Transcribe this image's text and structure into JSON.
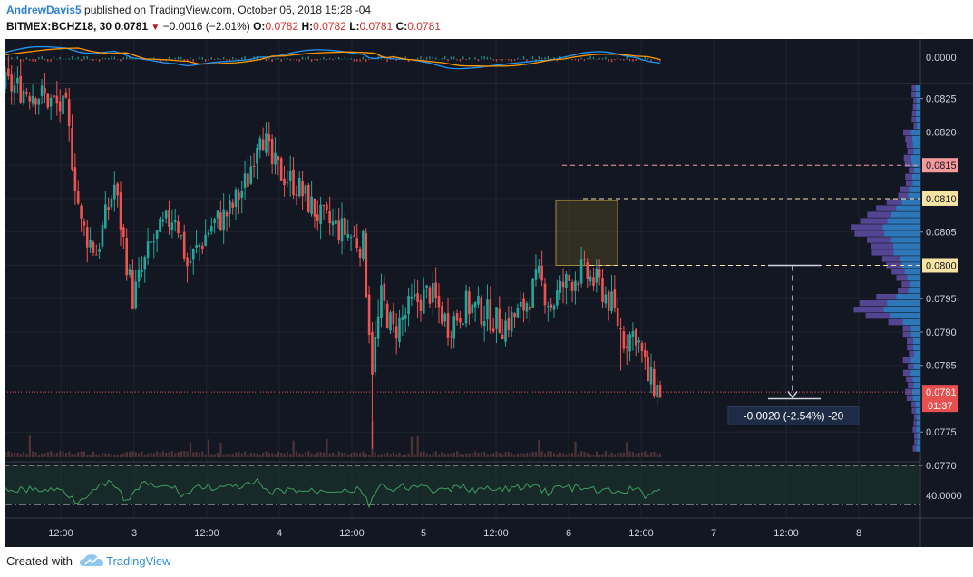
{
  "header": {
    "author": "AndrewDavis5",
    "published_text": "published on TradingView.com, October 06, 2018 15:28 -04",
    "symbol": "BITMEX:BCHZ18, 30",
    "last": "0.0781",
    "change": "−0.0016 (−2.01%)",
    "o_label": "O:",
    "o": "0.0782",
    "h_label": "H:",
    "h": "0.0782",
    "l_label": "L:",
    "l": "0.0781",
    "c_label": "C:",
    "c": "0.0781"
  },
  "footer": {
    "created_with": "Created with",
    "brand": "TradingView"
  },
  "colors": {
    "background": "#131722",
    "grid": "#1f2331",
    "up": "#26a69a",
    "down": "#ef5350",
    "macd_line": "#2196f3",
    "signal_line": "#ff9800",
    "rsi_line": "#3f9d5f",
    "price_tag": "#e84f4f",
    "level_810": "#f5d88a",
    "level_815": "#f59a9a",
    "level_800": "#f7e6a6",
    "vp_blue": "#2e7cc2",
    "vp_purple": "#5c4a9e"
  },
  "chart_data": {
    "type": "candlestick",
    "symbol": "BITMEX:BCHZ18",
    "interval": "30",
    "x_tick_labels": [
      "12:00",
      "3",
      "12:00",
      "4",
      "12:00",
      "5",
      "12:00",
      "6",
      "12:00",
      "7",
      "12:00",
      "8"
    ],
    "price_tick_labels": [
      "0.0825",
      "0.0820",
      "0.0815",
      "0.0810",
      "0.0805",
      "0.0800",
      "0.0795",
      "0.0790",
      "0.0785",
      "0.0781",
      "0.0775",
      "0.0770"
    ],
    "price_range": [
      0.077,
      0.0827
    ],
    "last_price": "0.0781",
    "countdown": "01:37",
    "levels": [
      {
        "value": "0.0815",
        "color": "#f59a9a"
      },
      {
        "value": "0.0810",
        "color": "#f7e3a2"
      },
      {
        "value": "0.0800",
        "color": "#f7e3a2"
      }
    ],
    "measure_label": "-0.0020 (-2.54%) -20",
    "macd_axis_label": "0.0000",
    "rsi_axis_label": "40.0000",
    "close_path_knots": [
      [
        0,
        0.0827
      ],
      [
        10,
        0.0826
      ],
      [
        20,
        0.0823
      ],
      [
        25,
        0.0806
      ],
      [
        30,
        0.0802
      ],
      [
        36,
        0.0812
      ],
      [
        42,
        0.0795
      ],
      [
        48,
        0.0803
      ],
      [
        56,
        0.0808
      ],
      [
        60,
        0.08
      ],
      [
        68,
        0.0806
      ],
      [
        74,
        0.0808
      ],
      [
        80,
        0.0813
      ],
      [
        84,
        0.0821
      ],
      [
        88,
        0.0815
      ],
      [
        96,
        0.0812
      ],
      [
        104,
        0.0807
      ],
      [
        112,
        0.0805
      ],
      [
        118,
        0.0803
      ],
      [
        121,
        0.0785
      ],
      [
        124,
        0.0795
      ],
      [
        128,
        0.079
      ],
      [
        134,
        0.0794
      ],
      [
        140,
        0.0796
      ],
      [
        146,
        0.0791
      ],
      [
        152,
        0.0794
      ],
      [
        158,
        0.0793
      ],
      [
        164,
        0.0791
      ],
      [
        170,
        0.0793
      ],
      [
        176,
        0.0798
      ],
      [
        180,
        0.0794
      ],
      [
        184,
        0.0797
      ],
      [
        190,
        0.0799
      ],
      [
        196,
        0.0797
      ],
      [
        200,
        0.0794
      ],
      [
        204,
        0.0789
      ],
      [
        208,
        0.079
      ],
      [
        212,
        0.0783
      ],
      [
        216,
        0.0781
      ]
    ],
    "candle_count": 217,
    "volume_profile_range": [
      0.0772,
      0.0827
    ]
  }
}
